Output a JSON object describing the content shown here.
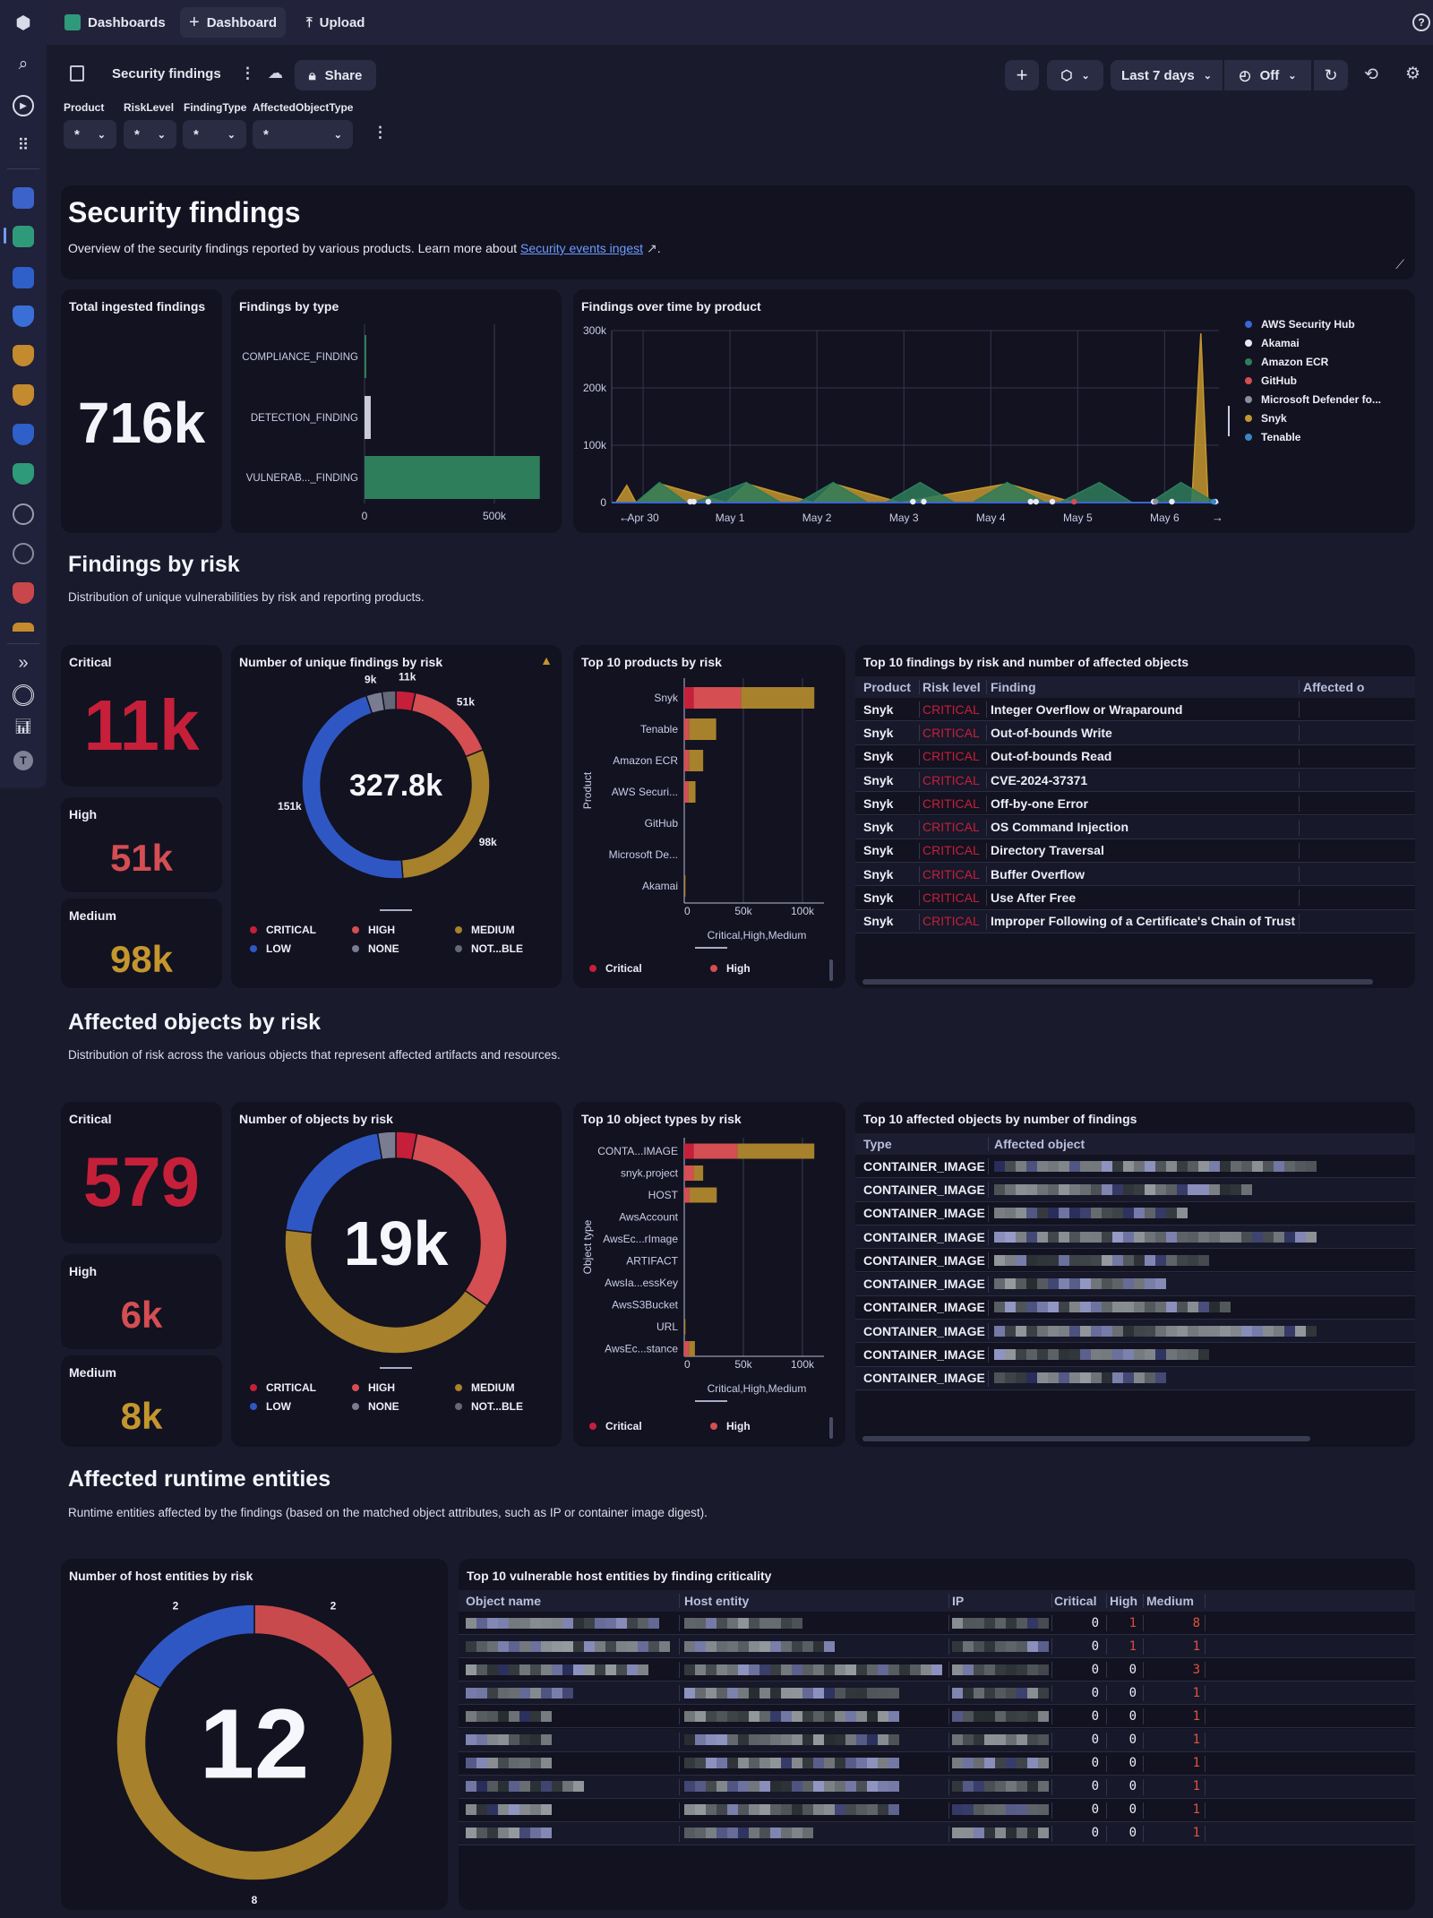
{
  "topbar": {
    "app_title": "Dashboards",
    "new_dashboard": "Dashboard",
    "upload": "Upload"
  },
  "sidebar": {
    "user_initial": "T"
  },
  "toolbar": {
    "dashboard_name": "Security findings",
    "share": "Share",
    "timeframe": "Last 7 days",
    "auto_refresh": "Off"
  },
  "filters": [
    {
      "label": "Product",
      "value": "*"
    },
    {
      "label": "RiskLevel",
      "value": "*"
    },
    {
      "label": "FindingType",
      "value": "*"
    },
    {
      "label": "AffectedObjectType",
      "value": "*"
    }
  ],
  "header": {
    "title": "Security findings",
    "description": "Overview of the security findings reported by various products. Learn more about ",
    "link": "Security events ingest",
    "suffix": "."
  },
  "total": {
    "title": "Total ingested findings",
    "value": "716k"
  },
  "sections": {
    "risk": {
      "title": "Findings by risk",
      "subtitle": "Distribution of unique vulnerabilities by risk and reporting products."
    },
    "objects": {
      "title": "Affected objects by risk",
      "subtitle": "Distribution of risk across the various objects that represent affected artifacts and resources."
    },
    "runtime": {
      "title": "Affected runtime entities",
      "subtitle": "Runtime entities affected by the findings (based on the matched object attributes, such as IP or container image digest)."
    }
  },
  "risk_tiles": {
    "critical": {
      "label": "Critical",
      "value": "11k"
    },
    "high": {
      "label": "High",
      "value": "51k"
    },
    "medium": {
      "label": "Medium",
      "value": "98k"
    }
  },
  "object_tiles": {
    "critical": {
      "label": "Critical",
      "value": "579"
    },
    "high": {
      "label": "High",
      "value": "6k"
    },
    "medium": {
      "label": "Medium",
      "value": "8k"
    }
  },
  "colors": {
    "critical": "#c61f3a",
    "high": "#d44e52",
    "medium": "#a7812b",
    "low": "#2f57c4",
    "none": "#6c6f84",
    "accent_link": "#6e9bff",
    "ecr_green": "#2e7d5b"
  },
  "findings_table": {
    "title": "Top 10 findings by risk and number of affected objects",
    "columns": [
      "Product",
      "Risk level",
      "Finding",
      "Affected o"
    ],
    "rows": [
      {
        "product": "Snyk",
        "risk": "CRITICAL",
        "finding": "Integer Overflow or Wraparound"
      },
      {
        "product": "Snyk",
        "risk": "CRITICAL",
        "finding": "Out-of-bounds Write"
      },
      {
        "product": "Snyk",
        "risk": "CRITICAL",
        "finding": "Out-of-bounds Read"
      },
      {
        "product": "Snyk",
        "risk": "CRITICAL",
        "finding": "CVE-2024-37371"
      },
      {
        "product": "Snyk",
        "risk": "CRITICAL",
        "finding": "Off-by-one Error"
      },
      {
        "product": "Snyk",
        "risk": "CRITICAL",
        "finding": "OS Command Injection"
      },
      {
        "product": "Snyk",
        "risk": "CRITICAL",
        "finding": "Directory Traversal"
      },
      {
        "product": "Snyk",
        "risk": "CRITICAL",
        "finding": "Buffer Overflow"
      },
      {
        "product": "Snyk",
        "risk": "CRITICAL",
        "finding": "Use After Free"
      },
      {
        "product": "Snyk",
        "risk": "CRITICAL",
        "finding": "Improper Following of a Certificate's Chain of Trust"
      }
    ]
  },
  "objects_table": {
    "title": "Top 10 affected objects by number of findings",
    "columns": [
      "Type",
      "Affected object"
    ],
    "rows": [
      {
        "type": "CONTAINER_IMAGE"
      },
      {
        "type": "CONTAINER_IMAGE"
      },
      {
        "type": "CONTAINER_IMAGE"
      },
      {
        "type": "CONTAINER_IMAGE"
      },
      {
        "type": "CONTAINER_IMAGE"
      },
      {
        "type": "CONTAINER_IMAGE"
      },
      {
        "type": "CONTAINER_IMAGE"
      },
      {
        "type": "CONTAINER_IMAGE"
      },
      {
        "type": "CONTAINER_IMAGE"
      },
      {
        "type": "CONTAINER_IMAGE"
      }
    ]
  },
  "hosts_table": {
    "title": "Top 10 vulnerable host entities by finding criticality",
    "columns": [
      "Object name",
      "Host entity",
      "IP",
      "Critical",
      "High",
      "Medium"
    ],
    "rows": [
      {
        "critical": "0",
        "high": "1",
        "medium": "8"
      },
      {
        "critical": "0",
        "high": "1",
        "medium": "1"
      },
      {
        "critical": "0",
        "high": "0",
        "medium": "3"
      },
      {
        "critical": "0",
        "high": "0",
        "medium": "1"
      },
      {
        "critical": "0",
        "high": "0",
        "medium": "1"
      },
      {
        "critical": "0",
        "high": "0",
        "medium": "1"
      },
      {
        "critical": "0",
        "high": "0",
        "medium": "1"
      },
      {
        "critical": "0",
        "high": "0",
        "medium": "1"
      },
      {
        "critical": "0",
        "high": "0",
        "medium": "1"
      },
      {
        "critical": "0",
        "high": "0",
        "medium": "1"
      }
    ]
  },
  "chart_data": [
    {
      "type": "bar",
      "orientation": "horizontal",
      "title": "Findings by type",
      "categories": [
        "COMPLIANCE_FINDING",
        "DETECTION_FINDING",
        "VULNERAB..._FINDING"
      ],
      "values": [
        2000,
        24000,
        675000
      ],
      "xlim": [
        0,
        710000
      ],
      "xtick_values": [
        0,
        500000
      ],
      "xtick_labels": [
        "0",
        "500k"
      ],
      "color": "#2e7d5b",
      "grid": true
    },
    {
      "type": "area",
      "title": "Findings over time by product",
      "xlim": [
        "Apr 29 15:20",
        "May 6 15:00"
      ],
      "xtick_values": [
        "Apr 30 00:00",
        "May 1 00:00",
        "May 2 00:00",
        "May 3 00:00",
        "May 4 00:00",
        "May 5 00:00",
        "May 6 00:00"
      ],
      "xtick_labels": [
        "Apr 30",
        "May 1",
        "May 2",
        "May 3",
        "May 4",
        "May 5",
        "May 6"
      ],
      "ylim": [
        0,
        300000
      ],
      "ytick_values": [
        0,
        100000,
        200000,
        300000
      ],
      "ytick_labels": [
        "0",
        "100k",
        "200k",
        "300k"
      ],
      "grid": true,
      "legend": "right",
      "series": [
        {
          "name": "AWS Security Hub",
          "color": "#3a66d6",
          "style": "line",
          "points": [
            [
              "Apr 29 15:20",
              0
            ],
            [
              "May 6 15:00",
              0
            ]
          ]
        },
        {
          "name": "Akamai",
          "color": "#e8e9f5",
          "style": "markers",
          "points": [
            [
              "Apr 30 13:00",
              0
            ],
            [
              "Apr 30 14:00",
              0
            ],
            [
              "Apr 30 18:00",
              0
            ],
            [
              "May 3 02:30",
              0
            ],
            [
              "May 3 05:30",
              0
            ],
            [
              "May 4 11:00",
              0
            ],
            [
              "May 4 12:30",
              0
            ],
            [
              "May 4 17:00",
              0
            ],
            [
              "May 5 21:00",
              0
            ],
            [
              "May 6 02:00",
              0
            ],
            [
              "May 6 14:00",
              0
            ]
          ]
        },
        {
          "name": "Amazon ECR",
          "color": "#2e7d5b",
          "style": "area",
          "points": [
            [
              "Apr 29 17:00",
              0
            ],
            [
              "Apr 29 19:30",
              0
            ],
            [
              "Apr 29 20:00",
              0
            ],
            [
              "Apr 29 22:00",
              0
            ],
            [
              "Apr 30 04:30",
              35000
            ],
            [
              "Apr 30 12:00",
              0
            ],
            [
              "Apr 30 14:00",
              0
            ],
            [
              "May 1 04:30",
              35000
            ],
            [
              "May 1 19:00",
              0
            ],
            [
              "May 1 14:00",
              0
            ],
            [
              "May 2 04:30",
              35000
            ],
            [
              "May 2 19:00",
              0
            ],
            [
              "May 2 14:00",
              0
            ],
            [
              "May 3 04:30",
              35000
            ],
            [
              "May 3 19:00",
              0
            ],
            [
              "May 3 14:00",
              0
            ],
            [
              "May 4 04:30",
              35000
            ],
            [
              "May 4 19:00",
              0
            ],
            [
              "May 4 15:00",
              0
            ],
            [
              "May 5 06:00",
              35000
            ],
            [
              "May 5 20:00",
              0
            ],
            [
              "May 5 15:00",
              0
            ],
            [
              "May 6 04:30",
              35000
            ],
            [
              "May 6 14:00",
              0
            ]
          ]
        },
        {
          "name": "GitHub",
          "color": "#d44e52",
          "style": "markers",
          "points": [
            [
              "May 4 23:00",
              0
            ]
          ]
        },
        {
          "name": "Microsoft Defender fo...",
          "color": "#8b8da0",
          "style": "markers",
          "points": [
            [
              "May 5 21:30",
              0
            ]
          ]
        },
        {
          "name": "Snyk",
          "color": "#c4962e",
          "style": "area",
          "points": [
            [
              "Apr 29 16:30",
              0
            ],
            [
              "Apr 29 19:30",
              30000
            ],
            [
              "Apr 29 22:00",
              0
            ],
            [
              "Apr 30 04:30",
              33000
            ],
            [
              "Apr 30 23:00",
              0
            ],
            [
              "May 1 04:30",
              33000
            ],
            [
              "May 1 23:00",
              0
            ],
            [
              "May 2 04:30",
              33000
            ],
            [
              "May 2 23:00",
              0
            ],
            [
              "May 4 04:30",
              33000
            ],
            [
              "May 4 23:00",
              0
            ],
            [
              "May 6 07:30",
              0
            ],
            [
              "May 6 10:00",
              295000
            ],
            [
              "May 6 12:00",
              0
            ]
          ]
        },
        {
          "name": "Tenable",
          "color": "#3a86c4",
          "style": "markers",
          "points": [
            [
              "May 6 13:30",
              0
            ]
          ]
        }
      ]
    },
    {
      "type": "pie",
      "style": "donut",
      "title": "Number of unique findings by risk",
      "center_label": "327.8k",
      "legend": "bottom",
      "slices": [
        {
          "name": "CRITICAL",
          "value": 11000,
          "label": "11k",
          "color": "#c61f3a"
        },
        {
          "name": "HIGH",
          "value": 51000,
          "label": "51k",
          "color": "#d44e52"
        },
        {
          "name": "MEDIUM",
          "value": 98000,
          "label": "98k",
          "color": "#a7812b"
        },
        {
          "name": "LOW",
          "value": 151000,
          "label": "151k",
          "color": "#2f57c4"
        },
        {
          "name": "NONE",
          "value": 9000,
          "label": "9k",
          "color": "#7a7d92"
        },
        {
          "name": "NOT...BLE",
          "value": 7800,
          "label": "",
          "color": "#656879"
        }
      ]
    },
    {
      "type": "bar",
      "orientation": "horizontal",
      "stacked": true,
      "title": "Top 10 products by risk",
      "categories": [
        "Snyk",
        "Tenable",
        "Amazon ECR",
        "AWS Securi...",
        "GitHub",
        "Microsoft De...",
        "Akamai"
      ],
      "series": [
        {
          "name": "Critical",
          "color": "#c61f3a",
          "values": [
            8000,
            0,
            0,
            0,
            0,
            0,
            0
          ]
        },
        {
          "name": "High",
          "color": "#d44e52",
          "values": [
            40000,
            4000,
            4000,
            3500,
            0,
            0,
            0
          ]
        },
        {
          "name": "Medium",
          "color": "#a7812b",
          "values": [
            62000,
            23000,
            12000,
            6000,
            0,
            0,
            1000
          ]
        }
      ],
      "xtick_values": [
        0,
        50000,
        100000
      ],
      "xtick_labels": [
        "0",
        "50k",
        "100k"
      ],
      "xlabel": "Critical,High,Medium",
      "ylabel": "Product",
      "legend": "bottom",
      "legend_visible": [
        "Critical",
        "High"
      ]
    },
    {
      "type": "pie",
      "style": "donut",
      "title": "Number of objects by risk",
      "center_label": "19k",
      "legend": "bottom",
      "slices": [
        {
          "name": "CRITICAL",
          "value": 579,
          "label": "",
          "color": "#c61f3a"
        },
        {
          "name": "HIGH",
          "value": 6000,
          "label": "",
          "color": "#d44e52"
        },
        {
          "name": "MEDIUM",
          "value": 8000,
          "label": "",
          "color": "#a7812b"
        },
        {
          "name": "LOW",
          "value": 3900,
          "label": "",
          "color": "#2f57c4"
        },
        {
          "name": "NONE",
          "value": 500,
          "label": "",
          "color": "#7a7d92"
        },
        {
          "name": "NOT...BLE",
          "value": 0,
          "label": "",
          "color": "#656879"
        }
      ]
    },
    {
      "type": "bar",
      "orientation": "horizontal",
      "stacked": true,
      "title": "Top 10 object types by risk",
      "categories": [
        "CONTA...IMAGE",
        "snyk.project",
        "HOST",
        "AwsAccount",
        "AwsEc...rImage",
        "ARTIFACT",
        "AwsIa...essKey",
        "AwsS3Bucket",
        "URL",
        "AwsEc...stance"
      ],
      "series": [
        {
          "name": "Critical",
          "color": "#c61f3a",
          "values": [
            8000,
            0,
            0,
            0,
            0,
            0,
            0,
            0,
            0,
            0
          ]
        },
        {
          "name": "High",
          "color": "#d44e52",
          "values": [
            37000,
            8000,
            4500,
            0,
            0,
            0,
            0,
            0,
            0,
            4000
          ]
        },
        {
          "name": "Medium",
          "color": "#a7812b",
          "values": [
            65000,
            8000,
            23000,
            0,
            0,
            0,
            0,
            0,
            1000,
            5000
          ]
        }
      ],
      "xtick_values": [
        0,
        50000,
        100000
      ],
      "xtick_labels": [
        "0",
        "50k",
        "100k"
      ],
      "xlabel": "Critical,High,Medium",
      "ylabel": "Object type",
      "legend": "bottom",
      "legend_visible": [
        "Critical",
        "High"
      ]
    },
    {
      "type": "pie",
      "style": "donut",
      "title": "Number of host entities by risk",
      "center_label": "12",
      "slices": [
        {
          "name": "CRITICAL",
          "value": 0,
          "label": "",
          "color": "#c61f3a"
        },
        {
          "name": "HIGH",
          "value": 2,
          "label": "2",
          "color": "#c94a4c"
        },
        {
          "name": "MEDIUM",
          "value": 8,
          "label": "8",
          "color": "#a7812b"
        },
        {
          "name": "LOW",
          "value": 2,
          "label": "2",
          "color": "#2f57c4"
        }
      ]
    }
  ]
}
